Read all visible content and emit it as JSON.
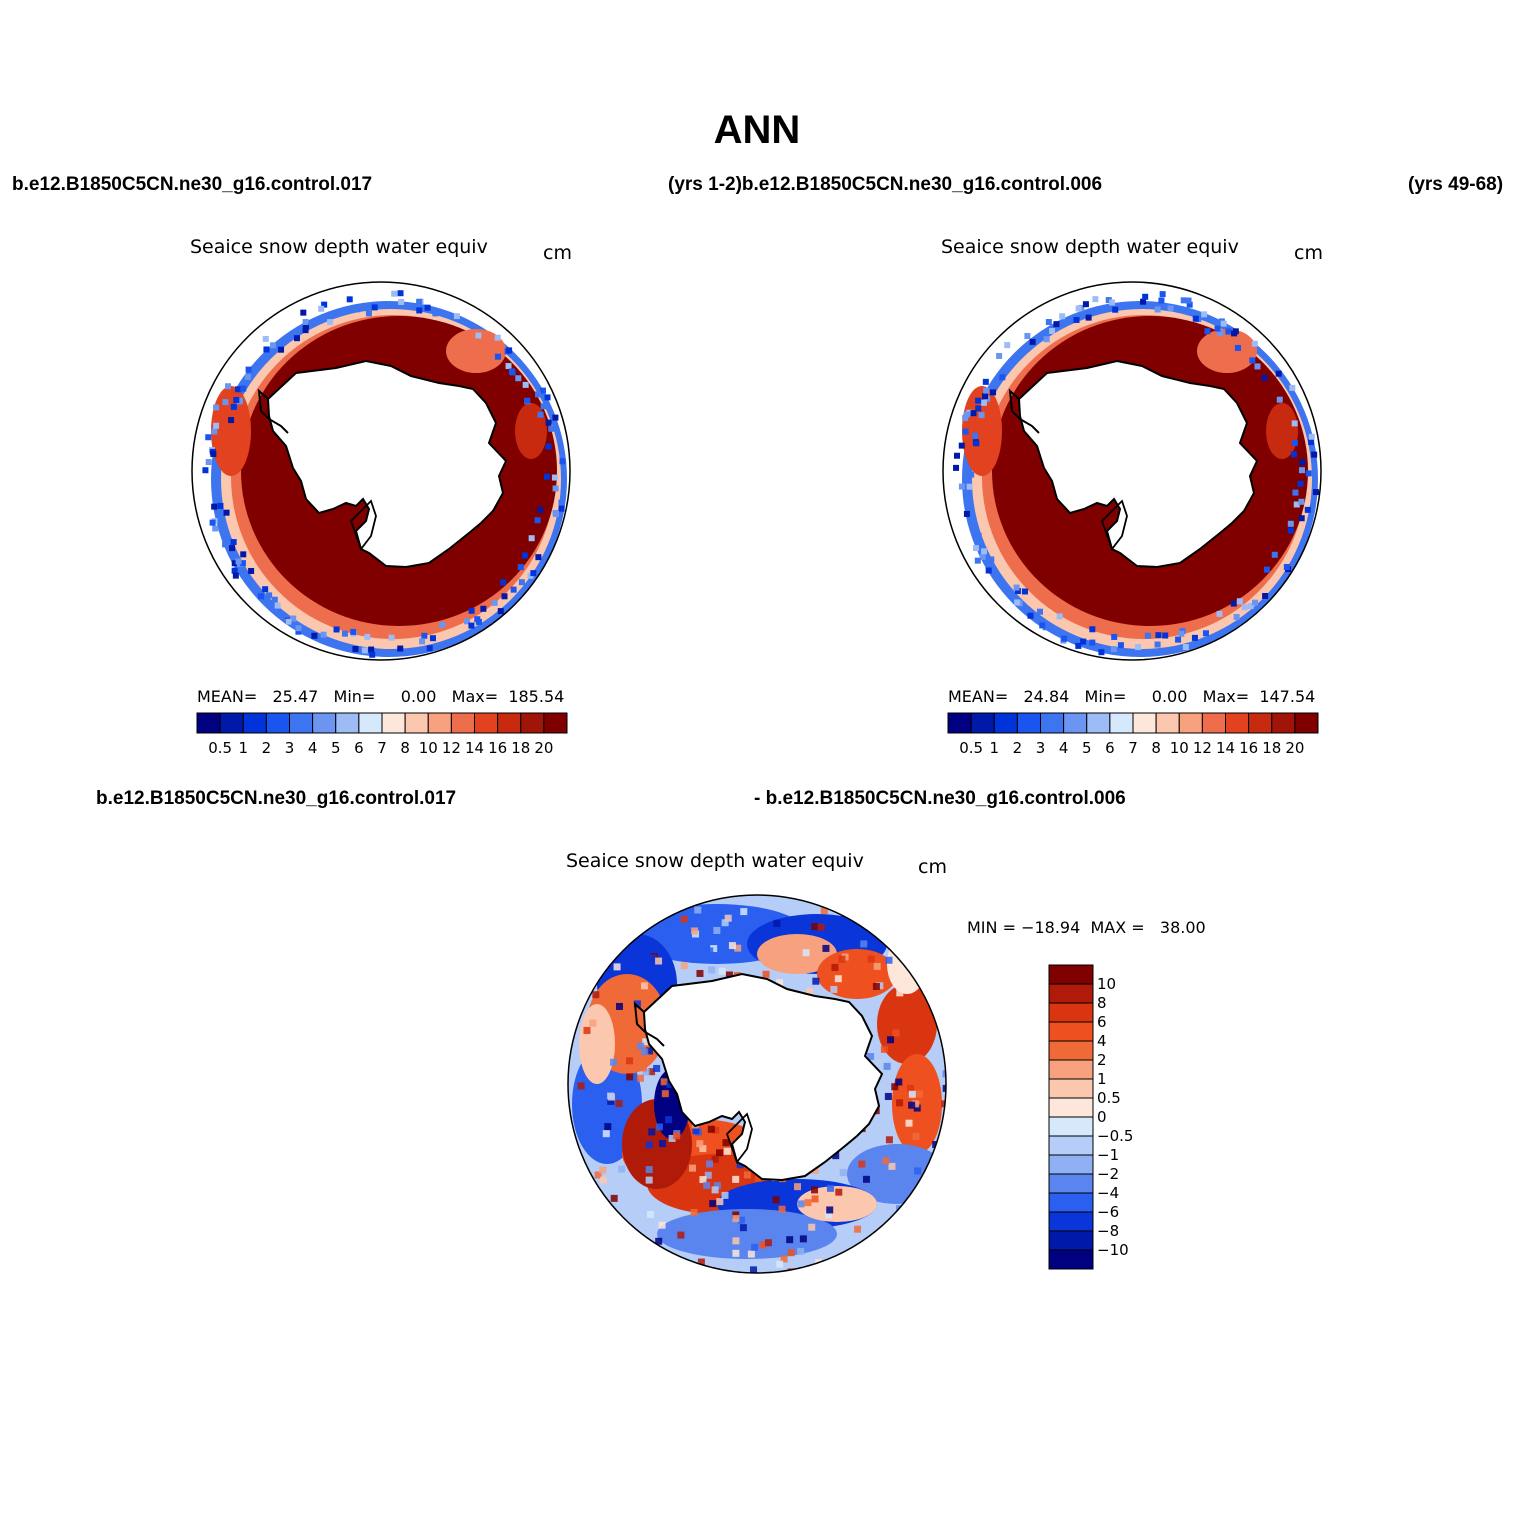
{
  "main_title": "ANN",
  "headers": {
    "top_left": "b.e12.B1850C5CN.ne30_g16.control.017",
    "top_mid": "(yrs 1-2)b.e12.B1850C5CN.ne30_g16.control.006",
    "top_right": "(yrs 49-68)",
    "bottom_left": "b.e12.B1850C5CN.ne30_g16.control.017",
    "bottom_mid": "- b.e12.B1850C5CN.ne30_g16.control.006"
  },
  "panels": [
    {
      "title": "Seaice snow depth water equiv",
      "units": "cm",
      "stats": "MEAN=   25.47   Min=     0.00   Max=  185.54"
    },
    {
      "title": "Seaice snow depth water equiv",
      "units": "cm",
      "stats": "MEAN=   24.84   Min=     0.00   Max=  147.54"
    },
    {
      "title": "Seaice snow depth water equiv",
      "units": "cm",
      "stats": "MIN = −18.94  MAX =   38.00"
    }
  ],
  "colorbars": {
    "abs": {
      "labels": [
        "0.5",
        "1",
        "2",
        "3",
        "4",
        "5",
        "6",
        "7",
        "8",
        "10",
        "12",
        "14",
        "16",
        "18",
        "20"
      ],
      "colors": [
        "#000080",
        "#0019a8",
        "#0033d9",
        "#1a55f0",
        "#3d74f0",
        "#6b95f0",
        "#9dbbf5",
        "#d6e8fb",
        "#fde6da",
        "#fbc7ae",
        "#f7a17e",
        "#ee6d4c",
        "#e2421f",
        "#c82a10",
        "#a01508",
        "#800000"
      ]
    },
    "diff": {
      "labels": [
        "10",
        "8",
        "6",
        "4",
        "2",
        "1",
        "0.5",
        "0",
        "−0.5",
        "−1",
        "−2",
        "−4",
        "−6",
        "−8",
        "−10"
      ],
      "colors": [
        "#800000",
        "#b01a08",
        "#d93510",
        "#ee5020",
        "#f06a38",
        "#f7a17e",
        "#fbc7ae",
        "#fde6da",
        "#d6e8fb",
        "#b5cdf7",
        "#8fb0f2",
        "#5a85ef",
        "#2b5ff0",
        "#0a35d9",
        "#0019a8",
        "#000080"
      ]
    }
  },
  "map_data": {
    "projection": "south polar stereographic",
    "region": "Southern Ocean / Antarctica",
    "panels": [
      "control.017 (yrs 1-2)",
      "control.006 (yrs 49-68)",
      "difference"
    ]
  }
}
